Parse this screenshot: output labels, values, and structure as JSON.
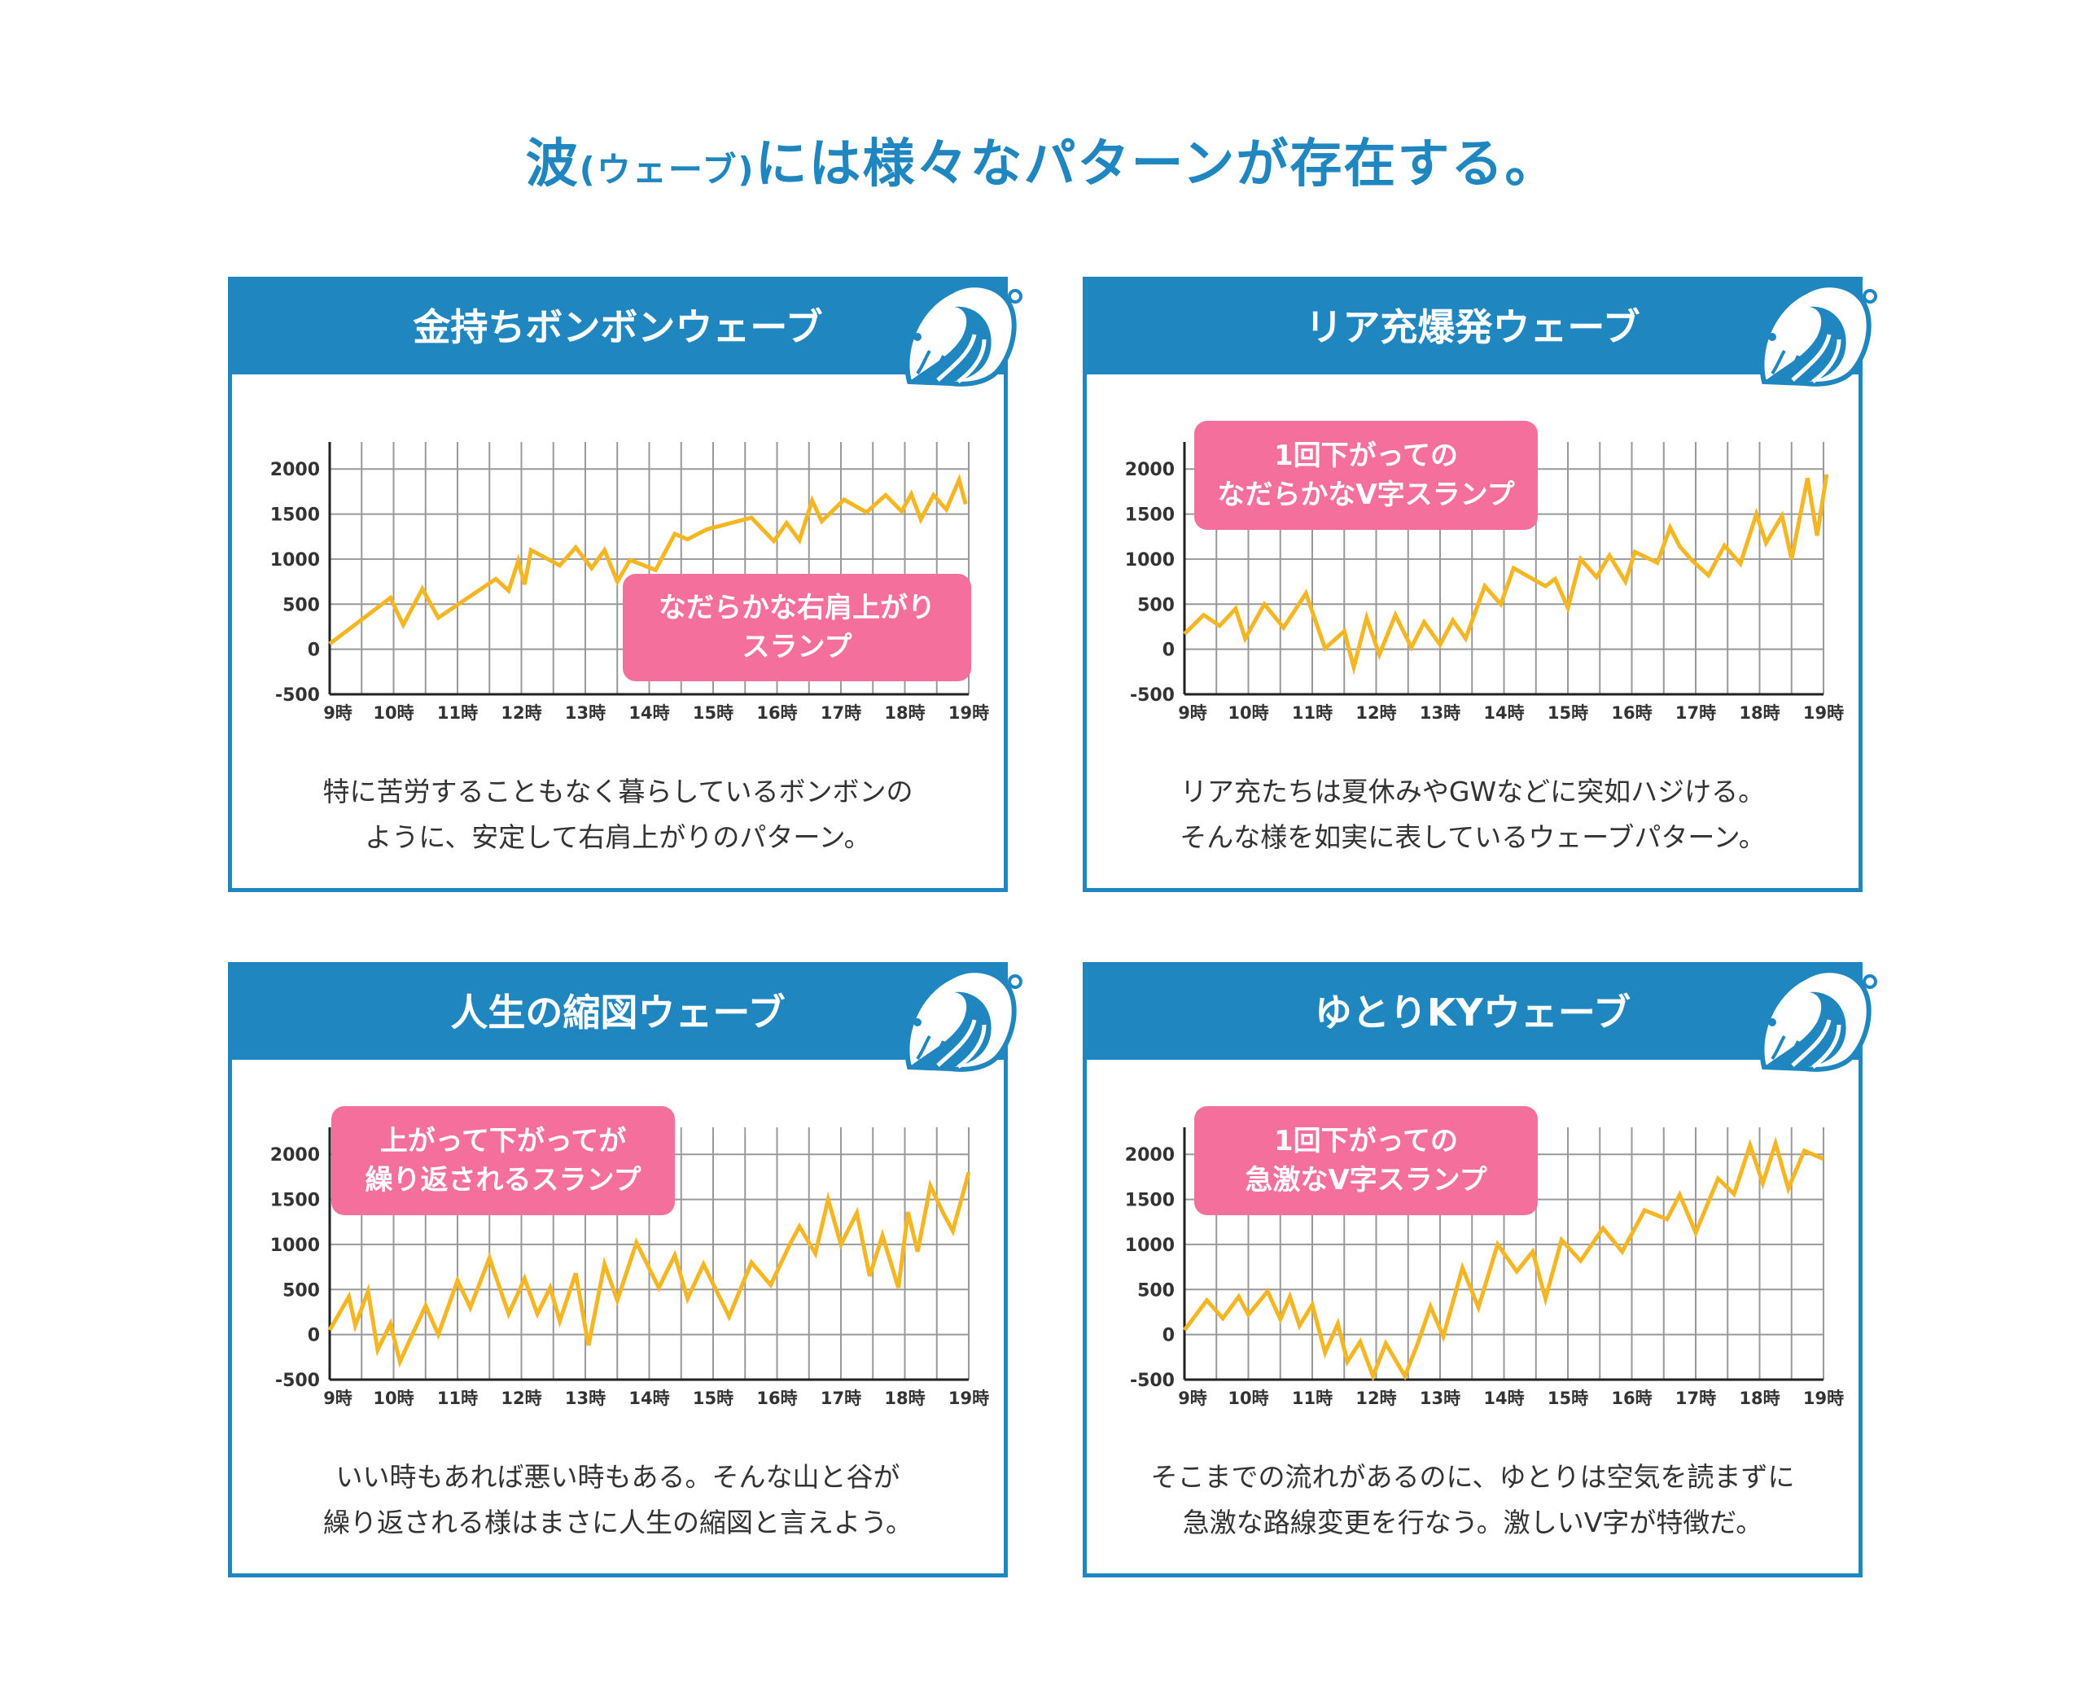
{
  "page_title": {
    "main": "波",
    "paren": "(ウェーブ)",
    "rest": "には様々なパターンが存在する。"
  },
  "colors": {
    "brand_blue": "#1f86c0",
    "line": "#f5b623",
    "callout": "#f46f9c",
    "grid": "#999999"
  },
  "chart_data": [
    {
      "type": "line",
      "title": "金持ちボンボンウェーブ",
      "callout": [
        "なだらかな右肩上がり",
        "スランプ"
      ],
      "description": [
        "特に苦労することもなく暮らしているボンボンの",
        "ように、安定して右肩上がりのパターン。"
      ],
      "x_tick_labels": [
        "9時",
        "10時",
        "11時",
        "12時",
        "13時",
        "14時",
        "15時",
        "16時",
        "17時",
        "18時",
        "19時"
      ],
      "y_ticks": [
        2000,
        1500,
        1000,
        500,
        0,
        -500
      ],
      "xlim": [
        9,
        19
      ],
      "ylim": [
        -500,
        2300
      ],
      "grid": true,
      "x": [
        9.0,
        9.95,
        10.15,
        10.45,
        10.7,
        11.6,
        11.8,
        11.95,
        12.05,
        12.15,
        12.6,
        12.85,
        13.1,
        13.3,
        13.5,
        13.7,
        14.1,
        14.4,
        14.6,
        14.9,
        15.6,
        15.95,
        16.15,
        16.35,
        16.55,
        16.7,
        17.05,
        17.4,
        17.7,
        17.95,
        18.1,
        18.25,
        18.45,
        18.65,
        18.85,
        18.95
      ],
      "y": [
        60,
        570,
        270,
        670,
        350,
        780,
        650,
        980,
        720,
        1100,
        930,
        1130,
        900,
        1100,
        750,
        990,
        880,
        1280,
        1220,
        1330,
        1460,
        1200,
        1400,
        1210,
        1650,
        1420,
        1660,
        1520,
        1710,
        1530,
        1720,
        1440,
        1710,
        1550,
        1880,
        1610
      ]
    },
    {
      "type": "line",
      "title": "リア充爆発ウェーブ",
      "callout": [
        "1回下がっての",
        "なだらかなV字スランプ"
      ],
      "description": [
        "リア充たちは夏休みやGWなどに突如ハジける。",
        "そんな様を如実に表しているウェーブパターン。"
      ],
      "x_tick_labels": [
        "9時",
        "10時",
        "11時",
        "12時",
        "13時",
        "14時",
        "15時",
        "16時",
        "17時",
        "18時",
        "19時"
      ],
      "y_ticks": [
        2000,
        1500,
        1000,
        500,
        0,
        -500
      ],
      "xlim": [
        9,
        19
      ],
      "ylim": [
        -500,
        2300
      ],
      "grid": true,
      "x": [
        9.0,
        9.3,
        9.55,
        9.8,
        9.95,
        10.25,
        10.55,
        10.9,
        11.2,
        11.5,
        11.65,
        11.85,
        12.05,
        12.3,
        12.55,
        12.75,
        13.0,
        13.2,
        13.4,
        13.7,
        13.95,
        14.15,
        14.35,
        14.65,
        14.8,
        15.0,
        15.2,
        15.45,
        15.65,
        15.9,
        16.05,
        16.4,
        16.6,
        16.75,
        16.95,
        17.2,
        17.45,
        17.7,
        17.95,
        18.1,
        18.35,
        18.5,
        18.75,
        18.9,
        19.05
      ],
      "y": [
        170,
        380,
        260,
        450,
        120,
        500,
        240,
        620,
        10,
        200,
        -200,
        350,
        -60,
        380,
        20,
        300,
        50,
        320,
        120,
        700,
        500,
        900,
        820,
        700,
        780,
        460,
        1000,
        800,
        1040,
        750,
        1080,
        960,
        1350,
        1140,
        980,
        820,
        1150,
        950,
        1500,
        1180,
        1480,
        1000,
        1900,
        1260,
        1940
      ]
    },
    {
      "type": "line",
      "title": "人生の縮図ウェーブ",
      "callout": [
        "上がって下がってが",
        "繰り返されるスランプ"
      ],
      "description": [
        "いい時もあれば悪い時もある。そんな山と谷が",
        "繰り返される様はまさに人生の縮図と言えよう。"
      ],
      "x_tick_labels": [
        "9時",
        "10時",
        "11時",
        "12時",
        "13時",
        "14時",
        "15時",
        "16時",
        "17時",
        "18時",
        "19時"
      ],
      "y_ticks": [
        2000,
        1500,
        1000,
        500,
        0,
        -500
      ],
      "xlim": [
        9,
        19
      ],
      "ylim": [
        -500,
        2300
      ],
      "grid": true,
      "x": [
        9.0,
        9.3,
        9.4,
        9.6,
        9.75,
        9.95,
        10.1,
        10.5,
        10.7,
        11.0,
        11.2,
        11.5,
        11.8,
        12.05,
        12.25,
        12.45,
        12.6,
        12.85,
        13.05,
        13.3,
        13.5,
        13.8,
        14.15,
        14.4,
        14.6,
        14.85,
        15.25,
        15.6,
        15.9,
        16.2,
        16.35,
        16.6,
        16.8,
        17.0,
        17.25,
        17.45,
        17.65,
        17.9,
        18.05,
        18.2,
        18.4,
        18.6,
        18.75,
        19.0
      ],
      "y": [
        50,
        420,
        100,
        480,
        -170,
        120,
        -300,
        320,
        0,
        600,
        300,
        850,
        230,
        620,
        230,
        520,
        150,
        680,
        -120,
        780,
        380,
        1020,
        520,
        880,
        400,
        780,
        200,
        800,
        550,
        1000,
        1200,
        900,
        1500,
        1000,
        1350,
        650,
        1100,
        520,
        1360,
        920,
        1650,
        1350,
        1150,
        1800
      ]
    },
    {
      "type": "line",
      "title": "ゆとりKYウェーブ",
      "callout": [
        "1回下がっての",
        "急激なV字スランプ"
      ],
      "description": [
        "そこまでの流れがあるのに、ゆとりは空気を読まずに",
        "急激な路線変更を行なう。激しいV字が特徴だ。"
      ],
      "x_tick_labels": [
        "9時",
        "10時",
        "11時",
        "12時",
        "13時",
        "14時",
        "15時",
        "16時",
        "17時",
        "18時",
        "19時"
      ],
      "y_ticks": [
        2000,
        1500,
        1000,
        500,
        0,
        -500
      ],
      "xlim": [
        9,
        19
      ],
      "ylim": [
        -500,
        2300
      ],
      "grid": true,
      "x": [
        9.0,
        9.35,
        9.6,
        9.85,
        10.0,
        10.3,
        10.5,
        10.65,
        10.8,
        11.0,
        11.2,
        11.4,
        11.55,
        11.75,
        11.95,
        12.15,
        12.45,
        12.65,
        12.85,
        13.05,
        13.35,
        13.6,
        13.9,
        14.2,
        14.45,
        14.65,
        14.9,
        15.2,
        15.55,
        15.85,
        16.2,
        16.55,
        16.75,
        17.0,
        17.35,
        17.6,
        17.85,
        18.05,
        18.25,
        18.45,
        18.7,
        19.0
      ],
      "y": [
        50,
        380,
        180,
        420,
        220,
        480,
        170,
        420,
        100,
        330,
        -200,
        120,
        -300,
        -80,
        -460,
        -100,
        -460,
        -100,
        310,
        -20,
        740,
        300,
        1000,
        700,
        920,
        400,
        1050,
        820,
        1180,
        920,
        1380,
        1280,
        1550,
        1130,
        1730,
        1560,
        2100,
        1680,
        2120,
        1620,
        2040,
        1950
      ]
    }
  ]
}
